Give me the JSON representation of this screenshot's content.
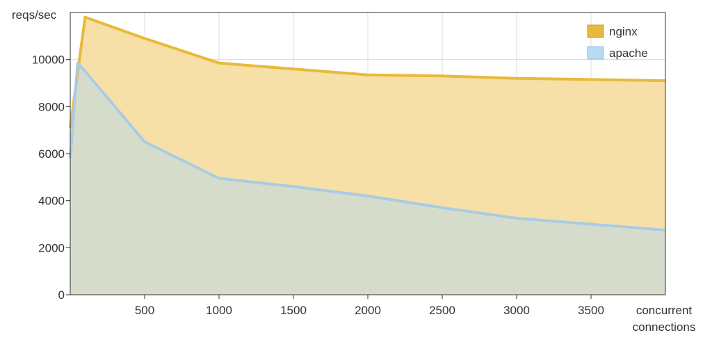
{
  "chart_data": {
    "type": "area",
    "title": "",
    "ylabel": "reqs/sec",
    "xlabel_lines": [
      "concurrent",
      "connections"
    ],
    "xlim": [
      0,
      4000
    ],
    "ylim": [
      0,
      12000
    ],
    "x_ticks": [
      500,
      1000,
      1500,
      2000,
      2500,
      3000,
      3500
    ],
    "y_ticks": [
      0,
      2000,
      4000,
      6000,
      8000,
      10000
    ],
    "grid": true,
    "legend_position": "top-right",
    "series": [
      {
        "name": "nginx",
        "color": "#e8b93a",
        "fill": "#f6e0a8",
        "x": [
          0,
          100,
          500,
          1000,
          1500,
          2000,
          2500,
          3000,
          3500,
          4000
        ],
        "y": [
          7100,
          11800,
          10900,
          9850,
          9600,
          9350,
          9300,
          9200,
          9150,
          9100
        ]
      },
      {
        "name": "apache",
        "color": "#a8cce6",
        "fill": "#d6dccb",
        "x": [
          0,
          50,
          100,
          500,
          1000,
          1500,
          2000,
          2500,
          3000,
          3500,
          4000
        ],
        "y": [
          5800,
          9850,
          9500,
          6500,
          4950,
          4600,
          4200,
          3700,
          3250,
          3000,
          2750
        ]
      }
    ]
  }
}
